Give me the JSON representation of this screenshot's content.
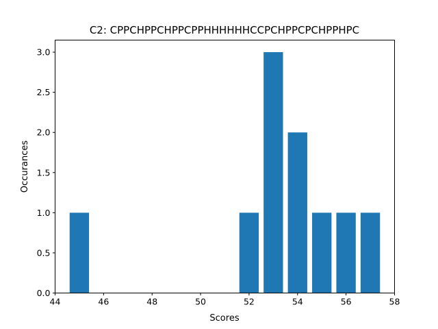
{
  "chart_data": {
    "type": "bar",
    "title": "C2: CPPCHPPCHPPCPPHHHHHHCCPCHPPCPCHPPHPC",
    "xlabel": "Scores",
    "ylabel": "Occurances",
    "x": [
      45,
      52,
      53,
      54,
      55,
      56,
      57
    ],
    "values": [
      1,
      1,
      3,
      2,
      1,
      1,
      1
    ],
    "bar_width": 0.8,
    "xlim": [
      44,
      58
    ],
    "ylim": [
      0,
      3.15
    ],
    "xticks": [
      44,
      46,
      48,
      50,
      52,
      54,
      56,
      58
    ],
    "xtick_labels": [
      "44",
      "46",
      "48",
      "50",
      "52",
      "54",
      "56",
      "58"
    ],
    "yticks": [
      0,
      0.5,
      1,
      1.5,
      2,
      2.5,
      3
    ],
    "ytick_labels": [
      "0.0",
      "0.5",
      "1.0",
      "1.5",
      "2.0",
      "2.5",
      "3.0"
    ],
    "bar_color": "#1f77b4",
    "grid": false,
    "legend": false
  }
}
